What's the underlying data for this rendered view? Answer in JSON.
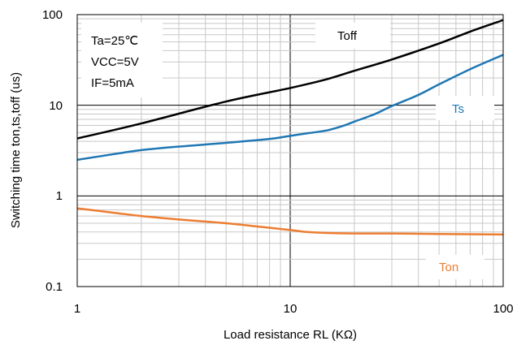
{
  "chart_data": {
    "type": "line",
    "xlabel": "Load resistance RL (KΩ)",
    "ylabel": "Switching time ton,ts,toff (us)",
    "xscale": "log",
    "yscale": "log",
    "xlim": [
      1,
      100
    ],
    "ylim": [
      0.1,
      100
    ],
    "grid": true,
    "x_ticks": [
      "1",
      "10",
      "100"
    ],
    "y_ticks": [
      "0.1",
      "1",
      "10",
      "100"
    ],
    "conditions": [
      "Ta=25℃",
      "VCC=5V",
      "IF=5mA"
    ],
    "series": [
      {
        "name": "Toff",
        "color": "#000000",
        "x": [
          1,
          2,
          5,
          10,
          15,
          20,
          30,
          50,
          70,
          100
        ],
        "y": [
          4.3,
          6.3,
          11,
          15.5,
          19.5,
          24,
          32,
          48,
          65,
          87
        ]
      },
      {
        "name": "Ts",
        "color": "#1f77b4",
        "x": [
          1,
          1.5,
          2,
          3,
          5,
          8,
          10,
          12,
          15,
          18,
          20,
          25,
          30,
          40,
          50,
          70,
          100
        ],
        "y": [
          2.5,
          2.9,
          3.2,
          3.5,
          3.85,
          4.25,
          4.6,
          4.9,
          5.3,
          6.0,
          6.6,
          8.0,
          9.8,
          13,
          17,
          25,
          36
        ]
      },
      {
        "name": "Ton",
        "color": "#ed7d31",
        "x": [
          1,
          1.5,
          2,
          3,
          5,
          7,
          10,
          12,
          15,
          20,
          30,
          50,
          100
        ],
        "y": [
          0.73,
          0.65,
          0.6,
          0.55,
          0.5,
          0.46,
          0.42,
          0.4,
          0.39,
          0.385,
          0.385,
          0.38,
          0.375
        ]
      }
    ]
  }
}
